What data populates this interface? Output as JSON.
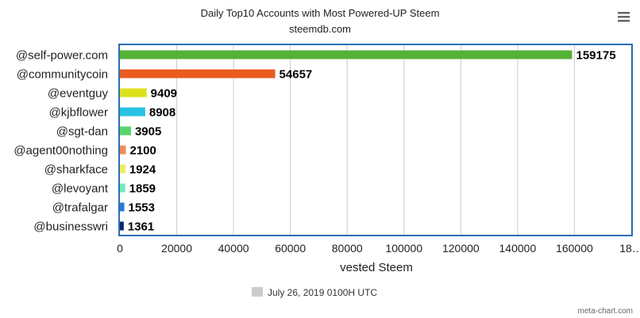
{
  "chart_data": {
    "type": "bar",
    "orientation": "horizontal",
    "title": "Daily Top10 Accounts with Most Powered-UP Steem",
    "subtitle": "steemdb.com",
    "categories": [
      "@self-power.com",
      "@communitycoin",
      "@eventguy",
      "@kjbflower",
      "@sgt-dan",
      "@agent00nothing",
      "@sharkface",
      "@levoyant",
      "@trafalgar",
      "@businesswri"
    ],
    "values": [
      159175,
      54657,
      9409,
      8908,
      3905,
      2100,
      1924,
      1859,
      1553,
      1361
    ],
    "colors": [
      "#55b236",
      "#ea5b1f",
      "#dde11c",
      "#27c2e3",
      "#5ad46e",
      "#f08a5a",
      "#eded57",
      "#70e8c0",
      "#2a78d8",
      "#0a2a6a"
    ],
    "xlabel": "vested Steem",
    "ylabel": "",
    "xlim": [
      0,
      180000
    ],
    "x_ticks": [
      "0",
      "20000",
      "40000",
      "60000",
      "80000",
      "100000",
      "120000",
      "140000",
      "160000",
      "18…"
    ],
    "grid": true,
    "legend_position": "bottom-center",
    "legend": [
      {
        "label": "July 26, 2019 0100H UTC",
        "color": "#cccccc"
      }
    ]
  },
  "credit": "meta-chart.com",
  "menu_icon": "hamburger-menu-icon"
}
